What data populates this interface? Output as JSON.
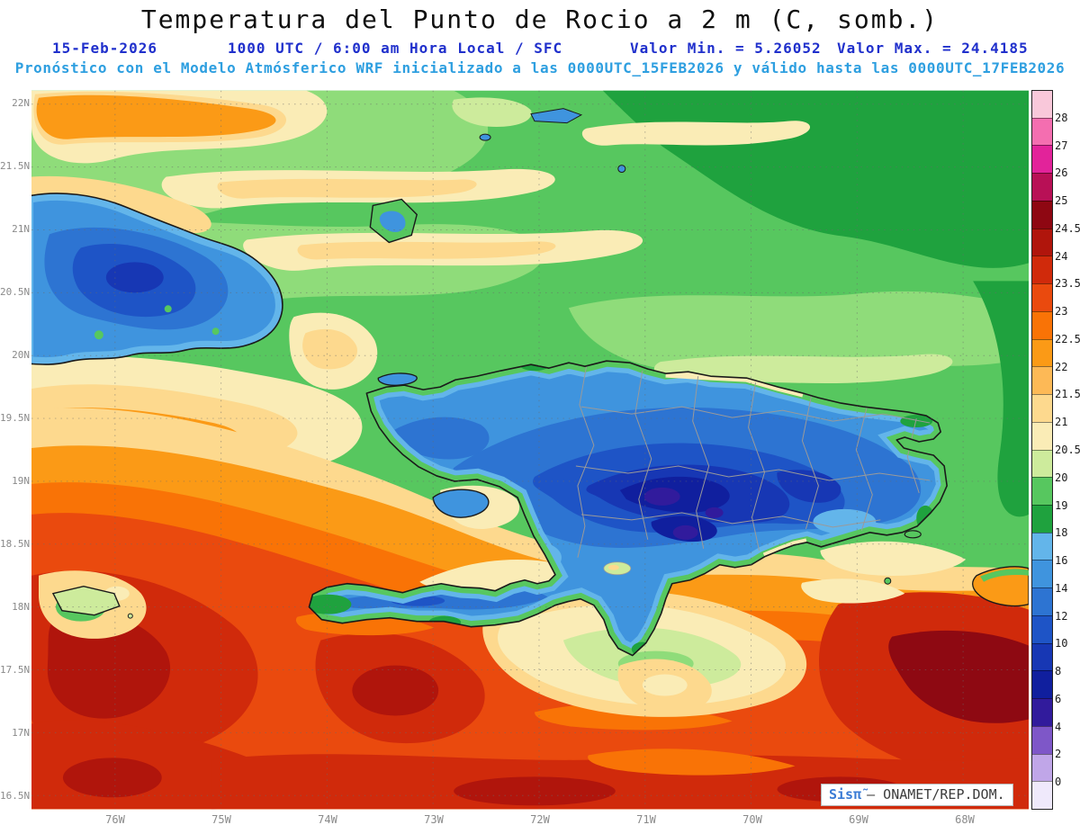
{
  "title": "Temperatura del Punto de Rocio a 2 m (C, somb.)",
  "header": {
    "date": "15-Feb-2026",
    "run_info": "1000 UTC / 6:00 am Hora Local / SFC",
    "min_value": "Valor Min. = 5.26052",
    "max_value": "Valor Max. = 24.4185",
    "model_line": "Pronóstico con el Modelo Atmósferico WRF inicializado a las 0000UTC_15FEB2026 y válido hasta las 0000UTC_17FEB2026"
  },
  "axes": {
    "lat_labels": [
      "22N",
      "21.5N",
      "21N",
      "20.5N",
      "20N",
      "19.5N",
      "19N",
      "18.5N",
      "18N",
      "17.5N",
      "17N",
      "16.5N"
    ],
    "lon_labels": [
      "76W",
      "75W",
      "74W",
      "73W",
      "72W",
      "71W",
      "70W",
      "69W",
      "68W"
    ]
  },
  "legend": {
    "labels": [
      "28",
      "27",
      "26",
      "25",
      "24.5",
      "24",
      "23.5",
      "23",
      "22.5",
      "22",
      "21.5",
      "21",
      "20.5",
      "20",
      "19",
      "18",
      "16",
      "14",
      "12",
      "10",
      "8",
      "6",
      "4",
      "2",
      "0"
    ],
    "colors": [
      "#f9c8da",
      "#f46eb0",
      "#e2239a",
      "#b81056",
      "#8e0712",
      "#b0150c",
      "#d02a0b",
      "#ea4a0e",
      "#f97306",
      "#fb9a16",
      "#fdb956",
      "#fdd98e",
      "#faecb6",
      "#cdeb9c",
      "#57c75f",
      "#1fa23e",
      "#63b5ea",
      "#3f94de",
      "#2d74d2",
      "#1e54c6",
      "#1737b4",
      "#101f9e",
      "#311b9c",
      "#7e57c8",
      "#c0a6e8",
      "#efe9fb"
    ]
  },
  "watermark": {
    "brand": "Sisπ̃",
    "org": "– ONAMET/REP.DOM."
  },
  "colors": {
    "header_blue": "#2030cc",
    "model_cyan": "#2e9fe0",
    "axis_gray": "#8a8a8a",
    "brand_blue": "#3a7bd5"
  }
}
